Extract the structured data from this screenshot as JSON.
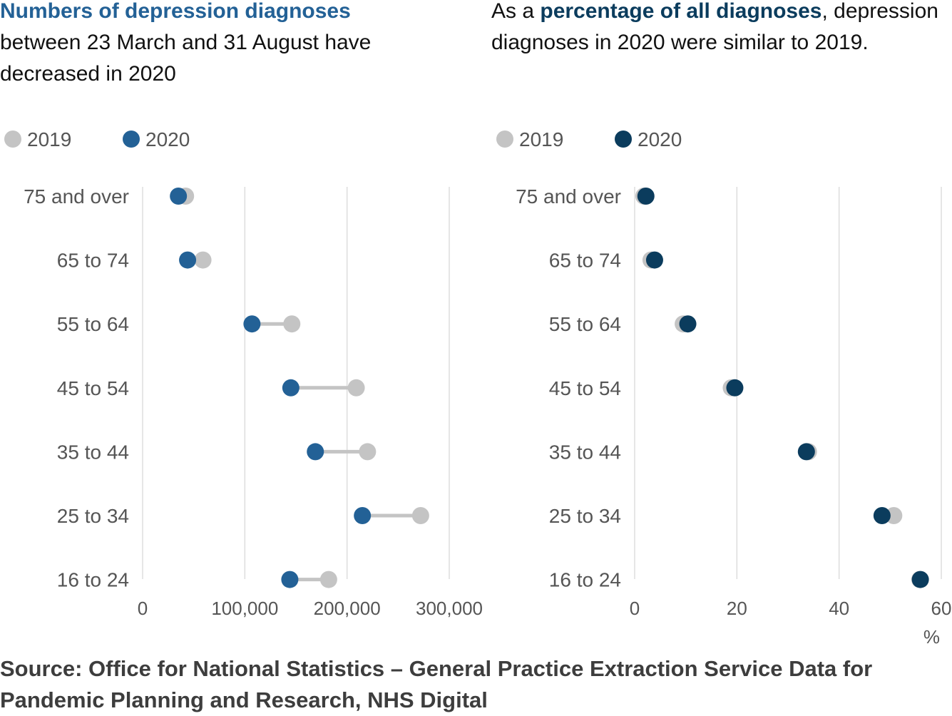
{
  "left_title": {
    "highlight": "Numbers of depression diagnoses",
    "rest": "between 23 March and 31 August have decreased in 2020"
  },
  "right_title": {
    "prefix": "As a ",
    "highlight": "percentage of all diagnoses",
    "rest": ", depression diagnoses in 2020 were similar to 2019."
  },
  "source": "Source: Office for National Statistics – General Practice Extraction Service Data for Pandemic Planning and Research, NHS Digital",
  "chart_data": [
    {
      "type": "scatter",
      "subtype": "dumbbell",
      "categories": [
        "75 and over",
        "65 to 74",
        "55 to 64",
        "45 to 54",
        "35 to 44",
        "25 to 34",
        "16 to 24"
      ],
      "series": [
        {
          "name": "2019",
          "color": "#c4c4c4",
          "values": [
            42000,
            59000,
            146000,
            209000,
            220000,
            272000,
            182000
          ]
        },
        {
          "name": "2020",
          "color": "#236196",
          "values": [
            35000,
            44000,
            107000,
            145000,
            169000,
            215000,
            144000
          ]
        }
      ],
      "xlim": [
        0,
        300000
      ],
      "xticks": [
        "0",
        "100,000",
        "200,000",
        "300,000"
      ],
      "xtick_values": [
        0,
        100000,
        200000,
        300000
      ],
      "xlabel": "",
      "grid": true,
      "legend_position": "top-left"
    },
    {
      "type": "scatter",
      "subtype": "dumbbell",
      "categories": [
        "75 and over",
        "65 to 74",
        "55 to 64",
        "45 to 54",
        "35 to 44",
        "25 to 34",
        "16 to 24"
      ],
      "series": [
        {
          "name": "2019",
          "color": "#c4c4c4",
          "values": [
            1.8,
            3.2,
            9.5,
            18.9,
            34.0,
            50.7,
            55.8
          ]
        },
        {
          "name": "2020",
          "color": "#0b3c5d",
          "values": [
            2.2,
            3.9,
            10.4,
            19.6,
            33.6,
            48.4,
            55.9
          ]
        }
      ],
      "xlim": [
        0,
        60
      ],
      "xticks": [
        "0",
        "20",
        "40",
        "60"
      ],
      "xtick_values": [
        0,
        20,
        40,
        60
      ],
      "xlabel": "%",
      "grid": true,
      "legend_position": "top-left"
    }
  ]
}
